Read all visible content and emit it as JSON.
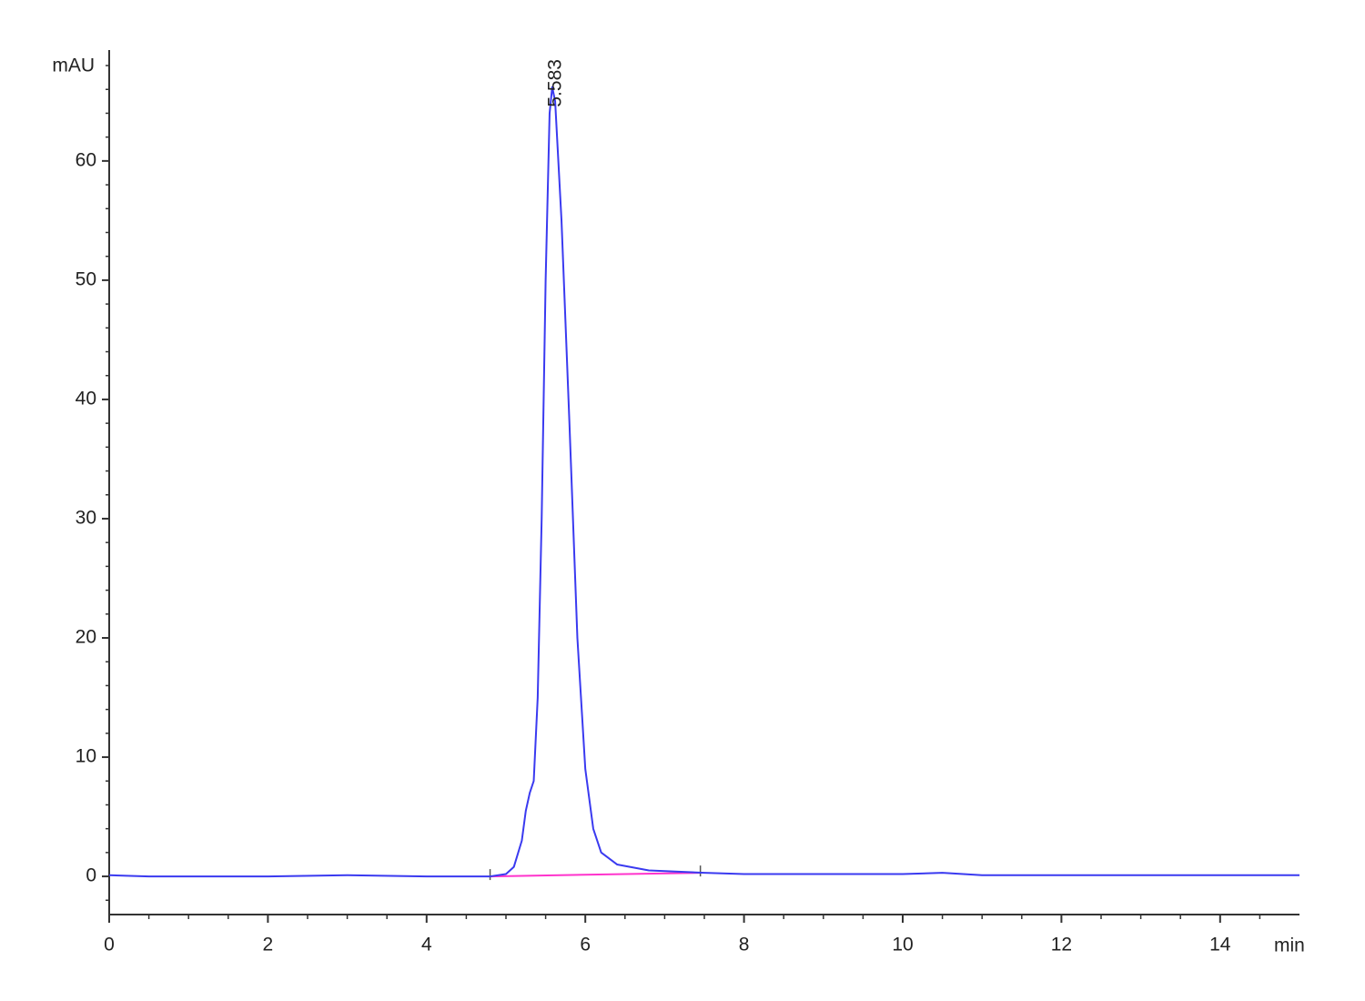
{
  "chart_data": {
    "type": "line",
    "xlabel": "min",
    "ylabel": "mAU",
    "x": [
      0,
      0.5,
      1,
      2,
      3,
      4,
      4.5,
      4.8,
      5.0,
      5.1,
      5.2,
      5.25,
      5.3,
      5.35,
      5.4,
      5.45,
      5.5,
      5.55,
      5.583,
      5.62,
      5.7,
      5.8,
      5.9,
      6.0,
      6.1,
      6.2,
      6.4,
      6.8,
      7.5,
      8,
      10,
      10.5,
      11,
      15
    ],
    "values": [
      0.1,
      0,
      0,
      0,
      0.1,
      0,
      0,
      0,
      0.2,
      0.8,
      3,
      5.5,
      7,
      8,
      15,
      30,
      50,
      64,
      66.2,
      65,
      55,
      38,
      20,
      9,
      4,
      2,
      1,
      0.5,
      0.3,
      0.2,
      0.2,
      0.3,
      0.1,
      0.1
    ],
    "color": "#3a3af0",
    "baseline": {
      "x": [
        4.8,
        7.45
      ],
      "values": [
        0,
        0.3
      ],
      "color": "#ff33cc"
    },
    "annotations": [
      {
        "text": "5.583",
        "x": 5.583,
        "y": 66.2
      }
    ],
    "xlim": [
      0,
      15
    ],
    "ylim": [
      -3.2,
      69.3
    ],
    "xticks": [
      0,
      2,
      4,
      6,
      8,
      10,
      12,
      14
    ],
    "yticks": [
      0,
      10,
      20,
      30,
      40,
      50,
      60
    ],
    "xminorticks": [
      0.5,
      1,
      1.5,
      2.5,
      3,
      3.5,
      4.5,
      5,
      5.5,
      6.5,
      7,
      7.5,
      8.5,
      9,
      9.5,
      10.5,
      11,
      11.5,
      12.5,
      13,
      13.5,
      14.5
    ],
    "yminorticks": [
      -2,
      2,
      4,
      6,
      8,
      12,
      14,
      16,
      18,
      22,
      24,
      26,
      28,
      32,
      34,
      36,
      38,
      42,
      44,
      46,
      48,
      52,
      54,
      56,
      58,
      62,
      64,
      66,
      68
    ]
  }
}
